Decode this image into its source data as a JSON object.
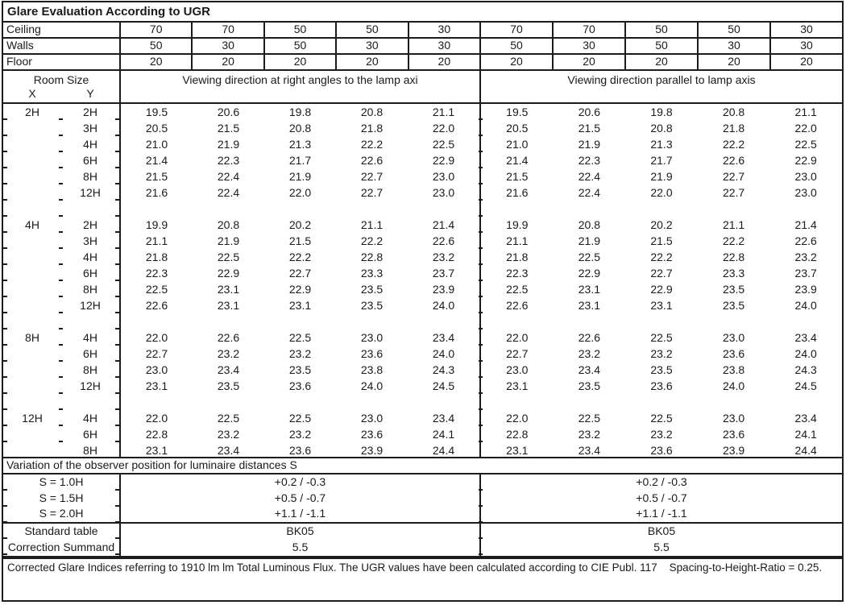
{
  "title": "Glare Evaluation According to UGR",
  "reflectances": {
    "rows": [
      {
        "label": "Ceiling",
        "values": [
          "70",
          "70",
          "50",
          "50",
          "30",
          "70",
          "70",
          "50",
          "50",
          "30"
        ]
      },
      {
        "label": "Walls",
        "values": [
          "50",
          "30",
          "50",
          "30",
          "30",
          "50",
          "30",
          "50",
          "30",
          "30"
        ]
      },
      {
        "label": "Floor",
        "values": [
          "20",
          "20",
          "20",
          "20",
          "20",
          "20",
          "20",
          "20",
          "20",
          "20"
        ]
      }
    ]
  },
  "header": {
    "room_size": "Room Size",
    "x": "X",
    "y": "Y",
    "left": "Viewing direction at right angles to the lamp axi",
    "right": "Viewing direction parallel to lamp axis"
  },
  "ugr_blocks": [
    {
      "x": "2H",
      "rows": [
        {
          "y": "2H",
          "left": [
            "19.5",
            "20.6",
            "19.8",
            "20.8",
            "21.1"
          ],
          "right": [
            "19.5",
            "20.6",
            "19.8",
            "20.8",
            "21.1"
          ]
        },
        {
          "y": "3H",
          "left": [
            "20.5",
            "21.5",
            "20.8",
            "21.8",
            "22.0"
          ],
          "right": [
            "20.5",
            "21.5",
            "20.8",
            "21.8",
            "22.0"
          ]
        },
        {
          "y": "4H",
          "left": [
            "21.0",
            "21.9",
            "21.3",
            "22.2",
            "22.5"
          ],
          "right": [
            "21.0",
            "21.9",
            "21.3",
            "22.2",
            "22.5"
          ]
        },
        {
          "y": "6H",
          "left": [
            "21.4",
            "22.3",
            "21.7",
            "22.6",
            "22.9"
          ],
          "right": [
            "21.4",
            "22.3",
            "21.7",
            "22.6",
            "22.9"
          ]
        },
        {
          "y": "8H",
          "left": [
            "21.5",
            "22.4",
            "21.9",
            "22.7",
            "23.0"
          ],
          "right": [
            "21.5",
            "22.4",
            "21.9",
            "22.7",
            "23.0"
          ]
        },
        {
          "y": "12H",
          "left": [
            "21.6",
            "22.4",
            "22.0",
            "22.7",
            "23.0"
          ],
          "right": [
            "21.6",
            "22.4",
            "22.0",
            "22.7",
            "23.0"
          ]
        }
      ]
    },
    {
      "x": "4H",
      "rows": [
        {
          "y": "2H",
          "left": [
            "19.9",
            "20.8",
            "20.2",
            "21.1",
            "21.4"
          ],
          "right": [
            "19.9",
            "20.8",
            "20.2",
            "21.1",
            "21.4"
          ]
        },
        {
          "y": "3H",
          "left": [
            "21.1",
            "21.9",
            "21.5",
            "22.2",
            "22.6"
          ],
          "right": [
            "21.1",
            "21.9",
            "21.5",
            "22.2",
            "22.6"
          ]
        },
        {
          "y": "4H",
          "left": [
            "21.8",
            "22.5",
            "22.2",
            "22.8",
            "23.2"
          ],
          "right": [
            "21.8",
            "22.5",
            "22.2",
            "22.8",
            "23.2"
          ]
        },
        {
          "y": "6H",
          "left": [
            "22.3",
            "22.9",
            "22.7",
            "23.3",
            "23.7"
          ],
          "right": [
            "22.3",
            "22.9",
            "22.7",
            "23.3",
            "23.7"
          ]
        },
        {
          "y": "8H",
          "left": [
            "22.5",
            "23.1",
            "22.9",
            "23.5",
            "23.9"
          ],
          "right": [
            "22.5",
            "23.1",
            "22.9",
            "23.5",
            "23.9"
          ]
        },
        {
          "y": "12H",
          "left": [
            "22.6",
            "23.1",
            "23.1",
            "23.5",
            "24.0"
          ],
          "right": [
            "22.6",
            "23.1",
            "23.1",
            "23.5",
            "24.0"
          ]
        }
      ]
    },
    {
      "x": "8H",
      "rows": [
        {
          "y": "4H",
          "left": [
            "22.0",
            "22.6",
            "22.5",
            "23.0",
            "23.4"
          ],
          "right": [
            "22.0",
            "22.6",
            "22.5",
            "23.0",
            "23.4"
          ]
        },
        {
          "y": "6H",
          "left": [
            "22.7",
            "23.2",
            "23.2",
            "23.6",
            "24.0"
          ],
          "right": [
            "22.7",
            "23.2",
            "23.2",
            "23.6",
            "24.0"
          ]
        },
        {
          "y": "8H",
          "left": [
            "23.0",
            "23.4",
            "23.5",
            "23.8",
            "24.3"
          ],
          "right": [
            "23.0",
            "23.4",
            "23.5",
            "23.8",
            "24.3"
          ]
        },
        {
          "y": "12H",
          "left": [
            "23.1",
            "23.5",
            "23.6",
            "24.0",
            "24.5"
          ],
          "right": [
            "23.1",
            "23.5",
            "23.6",
            "24.0",
            "24.5"
          ]
        }
      ]
    },
    {
      "x": "12H",
      "rows": [
        {
          "y": "4H",
          "left": [
            "22.0",
            "22.5",
            "22.5",
            "23.0",
            "23.4"
          ],
          "right": [
            "22.0",
            "22.5",
            "22.5",
            "23.0",
            "23.4"
          ]
        },
        {
          "y": "6H",
          "left": [
            "22.8",
            "23.2",
            "23.2",
            "23.6",
            "24.1"
          ],
          "right": [
            "22.8",
            "23.2",
            "23.2",
            "23.6",
            "24.1"
          ]
        },
        {
          "y": "8H",
          "left": [
            "23.1",
            "23.4",
            "23.6",
            "23.9",
            "24.4"
          ],
          "right": [
            "23.1",
            "23.4",
            "23.6",
            "23.9",
            "24.4"
          ]
        }
      ]
    }
  ],
  "variation": {
    "heading": "Variation of the observer position for luminaire distances S",
    "rows": [
      {
        "label": "S = 1.0H",
        "left": "+0.2 / -0.3",
        "right": "+0.2 / -0.3"
      },
      {
        "label": "S = 1.5H",
        "left": "+0.5 / -0.7",
        "right": "+0.5 / -0.7"
      },
      {
        "label": "S = 2.0H",
        "left": "+1.1 / -1.1",
        "right": "+1.1 / -1.1"
      }
    ]
  },
  "summary": {
    "rows": [
      {
        "label": "Standard table",
        "left": "BK05",
        "right": "BK05"
      },
      {
        "label": "Correction Summand",
        "left": "5.5",
        "right": "5.5"
      }
    ]
  },
  "footer": "Corrected Glare Indices referring to 1910 lm lm Total Luminous Flux. The UGR values have been calculated according to CIE Publ. 117    Spacing-to-Height-Ratio = 0.25."
}
